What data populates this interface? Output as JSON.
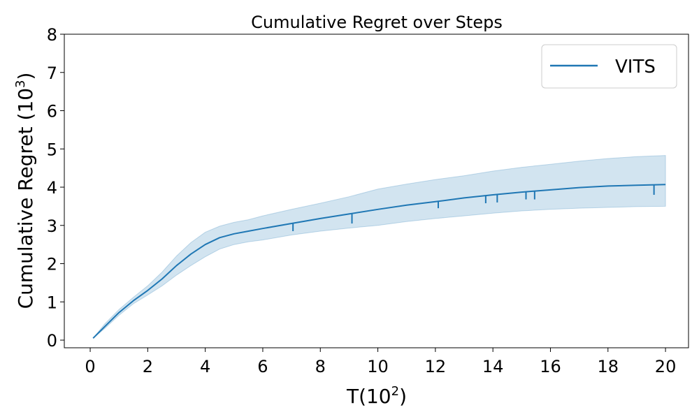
{
  "chart_data": {
    "type": "line",
    "title": "Cumulative Regret over Steps",
    "xlabel": "T(10",
    "xlabel_sup": "2",
    "xlabel_end": ")",
    "ylabel": "Cumulative Regret (10",
    "ylabel_sup": "3",
    "ylabel_end": ")",
    "xlim": [
      -0.9,
      20.8
    ],
    "ylim": [
      -0.2,
      8
    ],
    "xticks": [
      0,
      2,
      4,
      6,
      8,
      10,
      12,
      14,
      16,
      18,
      20
    ],
    "yticks": [
      0,
      1,
      2,
      3,
      4,
      5,
      6,
      7,
      8
    ],
    "grid": false,
    "legend_position": "top-right",
    "colors": {
      "line": "#1f77b4",
      "band": "#1f77b4"
    },
    "series": [
      {
        "name": "VITS",
        "x": [
          0.1,
          0.5,
          1,
          1.5,
          2,
          2.5,
          3,
          3.5,
          4,
          4.5,
          5,
          5.5,
          6,
          7,
          8,
          9,
          10,
          11,
          12,
          13,
          14,
          15,
          16,
          17,
          18,
          19,
          20
        ],
        "y": [
          0.05,
          0.35,
          0.72,
          1.03,
          1.3,
          1.6,
          1.95,
          2.25,
          2.5,
          2.68,
          2.78,
          2.85,
          2.92,
          3.05,
          3.18,
          3.3,
          3.42,
          3.53,
          3.62,
          3.72,
          3.8,
          3.87,
          3.93,
          3.99,
          4.03,
          4.05,
          4.07
        ],
        "lower": [
          0.05,
          0.3,
          0.65,
          0.95,
          1.18,
          1.42,
          1.7,
          1.95,
          2.18,
          2.38,
          2.5,
          2.57,
          2.62,
          2.75,
          2.85,
          2.93,
          3.0,
          3.1,
          3.18,
          3.25,
          3.32,
          3.38,
          3.42,
          3.45,
          3.47,
          3.49,
          3.5
        ],
        "upper": [
          0.05,
          0.42,
          0.8,
          1.12,
          1.42,
          1.78,
          2.2,
          2.55,
          2.82,
          2.98,
          3.08,
          3.15,
          3.25,
          3.42,
          3.58,
          3.75,
          3.95,
          4.08,
          4.2,
          4.3,
          4.42,
          4.52,
          4.6,
          4.68,
          4.75,
          4.8,
          4.83
        ]
      }
    ],
    "dips": [
      {
        "x": 7.05,
        "y": 2.85
      },
      {
        "x": 9.1,
        "y": 3.05
      },
      {
        "x": 12.1,
        "y": 3.45
      },
      {
        "x": 13.75,
        "y": 3.58
      },
      {
        "x": 14.15,
        "y": 3.6
      },
      {
        "x": 15.15,
        "y": 3.68
      },
      {
        "x": 15.45,
        "y": 3.68
      },
      {
        "x": 19.6,
        "y": 3.8
      }
    ]
  }
}
